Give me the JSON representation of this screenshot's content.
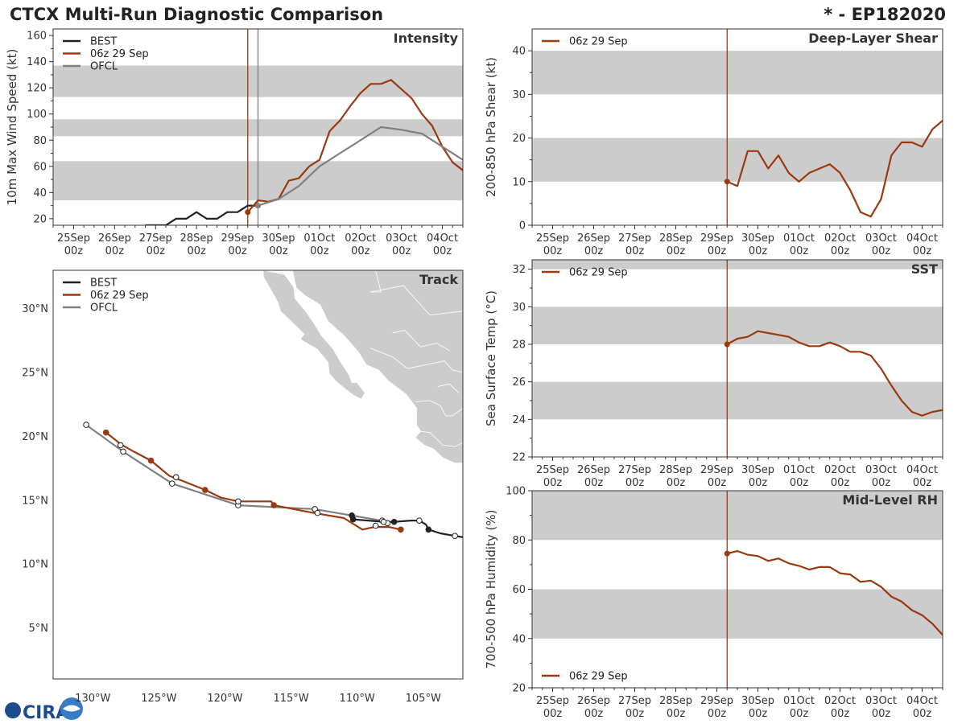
{
  "title_left": "CTCX Multi-Run Diagnostic Comparison",
  "title_right": "* - EP182020",
  "logo_text": "CIRA",
  "colors": {
    "best": "#222222",
    "run": "#9a3a10",
    "ofcl": "#808080",
    "band": "#cccccc",
    "land": "#cccccc",
    "coast": "#ffffff"
  },
  "chart_data": [
    {
      "id": "intensity",
      "type": "line",
      "title": "Intensity",
      "ylabel": "10m Max Wind Speed (kt)",
      "xticks": [
        "25Sep",
        "26Sep",
        "27Sep",
        "28Sep",
        "29Sep",
        "30Sep",
        "01Oct",
        "02Oct",
        "03Oct",
        "04Oct"
      ],
      "xtick_sub": "00z",
      "xlim": [
        24.5,
        34.5
      ],
      "ylim": [
        15,
        165
      ],
      "yticks": [
        20,
        40,
        60,
        80,
        100,
        120,
        140,
        160
      ],
      "bands": [
        [
          34,
          64
        ],
        [
          83,
          96
        ],
        [
          113,
          137
        ]
      ],
      "vlines": [
        {
          "x": 29.25,
          "color": "run"
        },
        {
          "x": 29.5,
          "color": "ofcl"
        }
      ],
      "legend": [
        "BEST",
        "06z 29 Sep",
        "OFCL"
      ],
      "series": [
        {
          "name": "BEST",
          "color": "best",
          "x": [
            26.75,
            27.0,
            27.25,
            27.5,
            27.75,
            28.0,
            28.25,
            28.5,
            28.75,
            29.0,
            29.25,
            29.5
          ],
          "y": [
            15,
            15,
            15,
            20,
            20,
            25,
            20,
            20,
            25,
            25,
            30,
            30
          ]
        },
        {
          "name": "06z 29 Sep",
          "color": "run",
          "x": [
            29.25,
            29.5,
            29.75,
            30.0,
            30.25,
            30.5,
            30.75,
            31.0,
            31.25,
            31.5,
            31.75,
            32.0,
            32.25,
            32.5,
            32.75,
            33.0,
            33.25,
            33.5,
            33.75,
            34.0,
            34.25,
            34.5
          ],
          "y": [
            25,
            34,
            33,
            35,
            49,
            51,
            60,
            65,
            87,
            95,
            106,
            116,
            123,
            123,
            126,
            119,
            112,
            100,
            91,
            75,
            63,
            57
          ]
        },
        {
          "name": "OFCL",
          "color": "ofcl",
          "x": [
            29.5,
            30.0,
            30.5,
            31.0,
            31.5,
            32.0,
            32.5,
            33.0,
            33.5,
            34.5
          ],
          "y": [
            30,
            35,
            45,
            60,
            70,
            80,
            90,
            88,
            85,
            65
          ]
        }
      ],
      "markers": [
        {
          "x": 29.25,
          "y": 25,
          "color": "run"
        },
        {
          "x": 29.5,
          "y": 30,
          "color": "ofcl"
        }
      ]
    },
    {
      "id": "shear",
      "type": "line",
      "title": "Deep-Layer Shear",
      "ylabel": "200-850 hPa Shear (kt)",
      "xticks": [
        "25Sep",
        "26Sep",
        "27Sep",
        "28Sep",
        "29Sep",
        "30Sep",
        "01Oct",
        "02Oct",
        "03Oct",
        "04Oct"
      ],
      "xtick_sub": "00z",
      "xlim": [
        24.5,
        34.5
      ],
      "ylim": [
        0,
        45
      ],
      "yticks": [
        0,
        10,
        20,
        30,
        40
      ],
      "bands": [
        [
          10,
          20
        ],
        [
          30,
          40
        ]
      ],
      "vlines": [
        {
          "x": 29.25,
          "color": "run"
        }
      ],
      "legend": [
        "06z 29 Sep"
      ],
      "series": [
        {
          "name": "06z 29 Sep",
          "color": "run",
          "x": [
            29.25,
            29.5,
            29.75,
            30.0,
            30.25,
            30.5,
            30.75,
            31.0,
            31.25,
            31.5,
            31.75,
            32.0,
            32.25,
            32.5,
            32.75,
            33.0,
            33.25,
            33.5,
            33.75,
            34.0,
            34.25,
            34.5
          ],
          "y": [
            10,
            9,
            17,
            17,
            13,
            16,
            12,
            10,
            12,
            13,
            14,
            12,
            8,
            3,
            2,
            6,
            16,
            19,
            19,
            18,
            22,
            24
          ]
        }
      ],
      "markers": [
        {
          "x": 29.25,
          "y": 10,
          "color": "run"
        }
      ]
    },
    {
      "id": "sst",
      "type": "line",
      "title": "SST",
      "ylabel": "Sea Surface Temp (°C)",
      "xticks": [
        "25Sep",
        "26Sep",
        "27Sep",
        "28Sep",
        "29Sep",
        "30Sep",
        "01Oct",
        "02Oct",
        "03Oct",
        "04Oct"
      ],
      "xtick_sub": "00z",
      "xlim": [
        24.5,
        34.5
      ],
      "ylim": [
        22,
        32.5
      ],
      "yticks": [
        22,
        24,
        26,
        28,
        30,
        32
      ],
      "bands": [
        [
          24,
          26
        ],
        [
          28,
          30
        ],
        [
          32,
          32.5
        ]
      ],
      "vlines": [
        {
          "x": 29.25,
          "color": "run"
        }
      ],
      "legend": [
        "06z 29 Sep"
      ],
      "series": [
        {
          "name": "06z 29 Sep",
          "color": "run",
          "x": [
            29.25,
            29.5,
            29.75,
            30.0,
            30.25,
            30.5,
            30.75,
            31.0,
            31.25,
            31.5,
            31.75,
            32.0,
            32.25,
            32.5,
            32.75,
            33.0,
            33.25,
            33.5,
            33.75,
            34.0,
            34.25,
            34.5
          ],
          "y": [
            28.0,
            28.3,
            28.4,
            28.7,
            28.6,
            28.5,
            28.4,
            28.1,
            27.9,
            27.9,
            28.1,
            27.9,
            27.6,
            27.6,
            27.4,
            26.7,
            25.8,
            25.0,
            24.4,
            24.2,
            24.4,
            24.5
          ]
        }
      ],
      "markers": [
        {
          "x": 29.25,
          "y": 28.0,
          "color": "run"
        }
      ]
    },
    {
      "id": "rh",
      "type": "line",
      "title": "Mid-Level RH",
      "ylabel": "700-500 hPa Humidity (%)",
      "xticks": [
        "25Sep",
        "26Sep",
        "27Sep",
        "28Sep",
        "29Sep",
        "30Sep",
        "01Oct",
        "02Oct",
        "03Oct",
        "04Oct"
      ],
      "xtick_sub": "00z",
      "xlim": [
        24.5,
        34.5
      ],
      "ylim": [
        20,
        100
      ],
      "yticks": [
        20,
        40,
        60,
        80,
        100
      ],
      "bands": [
        [
          40,
          60
        ],
        [
          80,
          100
        ]
      ],
      "vlines": [
        {
          "x": 29.25,
          "color": "run"
        }
      ],
      "legend": [
        "06z 29 Sep"
      ],
      "legend_pos": "bottom-left",
      "series": [
        {
          "name": "06z 29 Sep",
          "color": "run",
          "x": [
            29.25,
            29.5,
            29.75,
            30.0,
            30.25,
            30.5,
            30.75,
            31.0,
            31.25,
            31.5,
            31.75,
            32.0,
            32.25,
            32.5,
            32.75,
            33.0,
            33.25,
            33.5,
            33.75,
            34.0,
            34.25,
            34.5
          ],
          "y": [
            74.5,
            75.5,
            74,
            73.5,
            71.5,
            72.5,
            70.5,
            69.5,
            68,
            69,
            69,
            66.5,
            66,
            63,
            63.5,
            61,
            57,
            55,
            51.5,
            49.5,
            46,
            41.5
          ]
        }
      ],
      "markers": [
        {
          "x": 29.25,
          "y": 74.5,
          "color": "run"
        }
      ]
    },
    {
      "id": "track",
      "type": "scatter",
      "title": "Track",
      "xlim": [
        -133,
        -102
      ],
      "ylim": [
        1,
        33
      ],
      "xticks": [
        {
          "v": -130,
          "label": "130°W"
        },
        {
          "v": -125,
          "label": "125°W"
        },
        {
          "v": -120,
          "label": "120°W"
        },
        {
          "v": -115,
          "label": "115°W"
        },
        {
          "v": -110,
          "label": "110°W"
        },
        {
          "v": -105,
          "label": "105°W"
        }
      ],
      "yticks": [
        {
          "v": 5,
          "label": "5°N"
        },
        {
          "v": 10,
          "label": "10°N"
        },
        {
          "v": 15,
          "label": "15°N"
        },
        {
          "v": 20,
          "label": "20°N"
        },
        {
          "v": 25,
          "label": "25°N"
        },
        {
          "v": 30,
          "label": "30°N"
        }
      ],
      "legend": [
        "BEST",
        "06z 29 Sep",
        "OFCL"
      ],
      "series": [
        {
          "name": "BEST",
          "color": "best",
          "lon": [
            -102.0,
            -102.6,
            -103.7,
            -104.6,
            -104.8,
            -105.3,
            -105.9,
            -107.2,
            -108.0,
            -110.3,
            -110.4
          ],
          "lat": [
            12.1,
            12.2,
            12.4,
            12.7,
            13.1,
            13.4,
            13.4,
            13.3,
            13.3,
            13.5,
            13.8
          ],
          "dots": [
            [
              -102.6,
              12.2,
              "open"
            ],
            [
              -104.6,
              12.7,
              "filled"
            ],
            [
              -105.3,
              13.4,
              "open"
            ],
            [
              -107.2,
              13.3,
              "filled"
            ],
            [
              -108.0,
              13.3,
              "open"
            ],
            [
              -110.3,
              13.5,
              "filled"
            ],
            [
              -110.4,
              13.8,
              "filled"
            ]
          ]
        },
        {
          "name": "06z 29 Sep",
          "color": "run",
          "lon": [
            -106.7,
            -107.6,
            -108.7,
            -109.6,
            -111.0,
            -113.3,
            -116.3,
            -116.5,
            -119.0,
            -120.3,
            -121.5,
            -123.2,
            -124.2,
            -125.6,
            -126.9,
            -127.9,
            -129.0
          ],
          "lat": [
            12.7,
            12.9,
            12.9,
            12.7,
            13.6,
            14.0,
            14.6,
            14.9,
            14.9,
            15.2,
            15.8,
            16.5,
            16.9,
            18.1,
            18.8,
            19.4,
            20.3
          ],
          "dots": [
            [
              -106.7,
              12.7,
              "filled"
            ],
            [
              -116.3,
              14.6,
              "filled"
            ],
            [
              -121.5,
              15.8,
              "filled"
            ],
            [
              -125.6,
              18.1,
              "filled"
            ],
            [
              -129.0,
              20.3,
              "filled"
            ]
          ]
        },
        {
          "name": "OFCL",
          "color": "ofcl",
          "lon": [
            -107.7,
            -108.2,
            -113.2,
            -119.0,
            -124.0,
            -127.7,
            -130.5
          ],
          "lat": [
            13.2,
            13.4,
            14.3,
            14.6,
            16.3,
            18.8,
            20.9
          ],
          "dots": [
            [
              -107.7,
              13.2,
              "open"
            ],
            [
              -113.2,
              14.3,
              "open"
            ],
            [
              -119.0,
              14.6,
              "open"
            ],
            [
              -124.0,
              16.3,
              "open"
            ],
            [
              -127.7,
              18.8,
              "open"
            ],
            [
              -130.5,
              20.9,
              "open"
            ],
            [
              -113.0,
              14.0,
              "open"
            ],
            [
              -119.0,
              14.9,
              "open"
            ],
            [
              -123.7,
              16.8,
              "open"
            ],
            [
              -127.9,
              19.3,
              "open"
            ],
            [
              -108.1,
              13.4,
              "open"
            ],
            [
              -108.6,
              13.0,
              "open"
            ]
          ]
        }
      ]
    }
  ]
}
